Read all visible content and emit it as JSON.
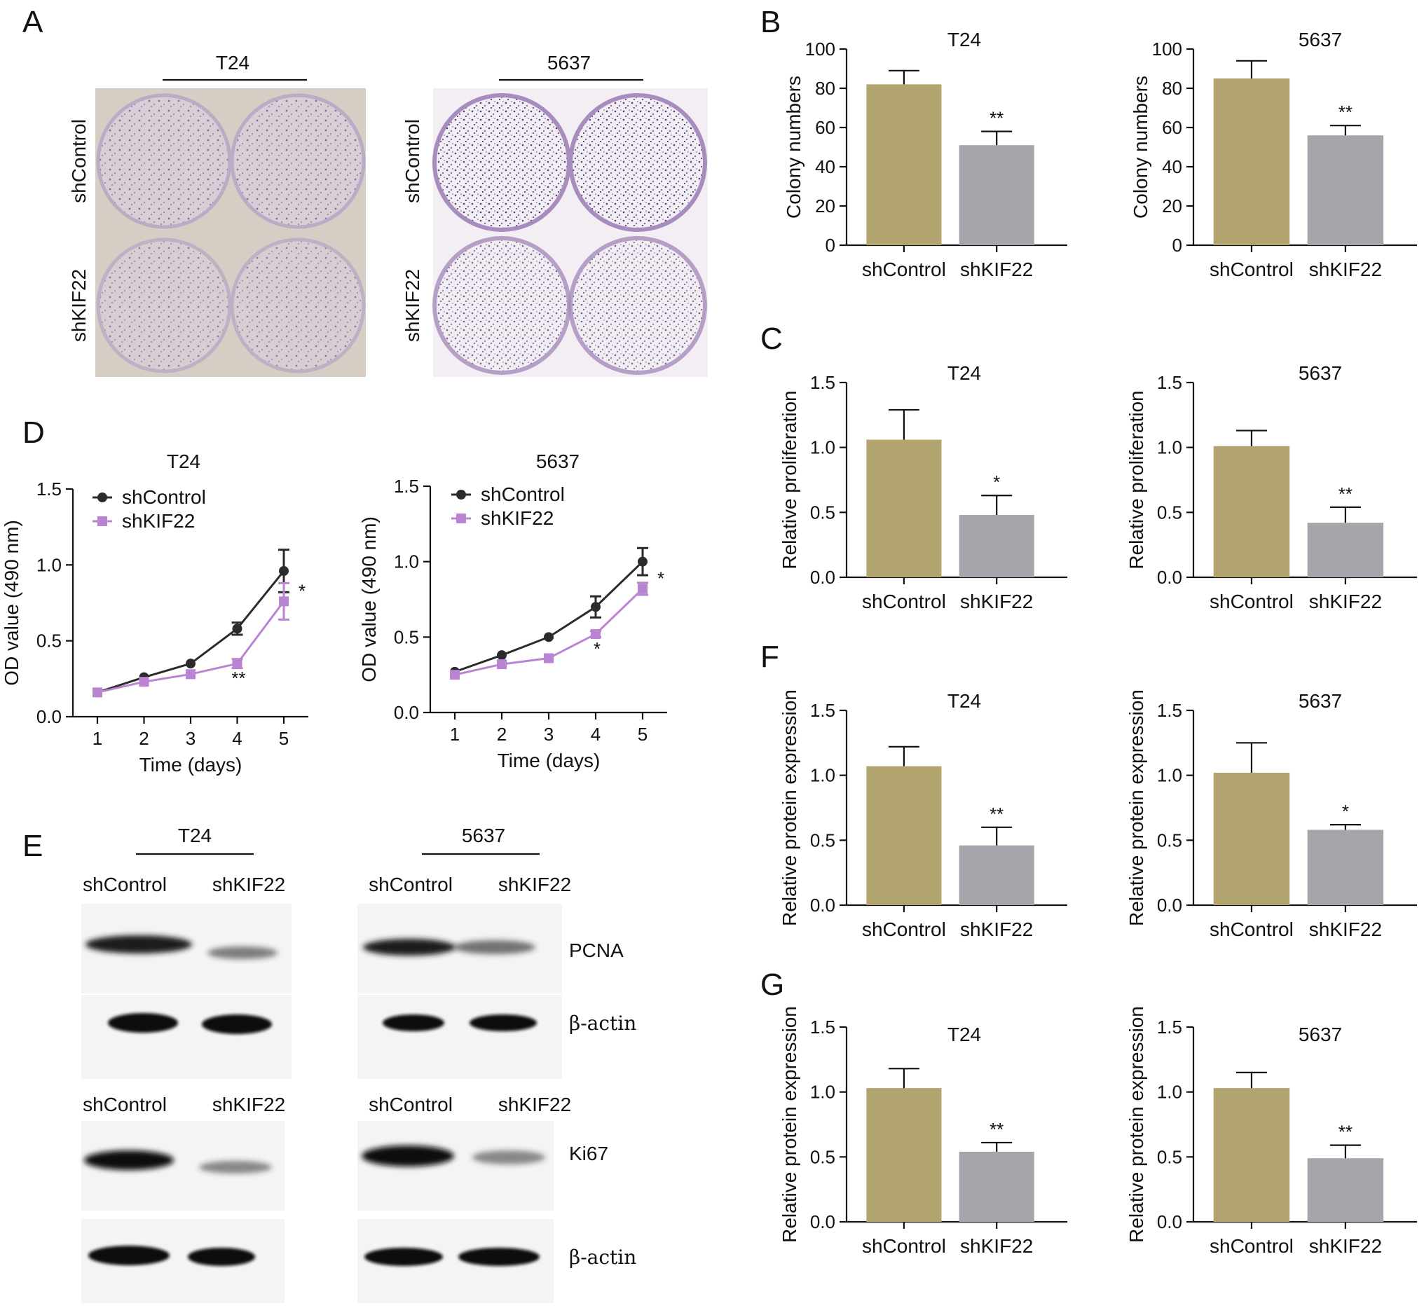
{
  "figure": {
    "panel_letters": [
      "A",
      "B",
      "C",
      "D",
      "E",
      "F",
      "G"
    ],
    "colors": {
      "shControl_bar": "#b2a46e",
      "shKIF22_bar": "#a5a5ab",
      "shControl_line": "#2b2b2b",
      "shKIF22_line": "#b985d2",
      "plate_t24": "#d8d0c8",
      "plate_5637": "#f2eff5",
      "stain_t24": "#9b86a6",
      "stain_5637": "#7b5b8f"
    }
  },
  "panel_a": {
    "plates": [
      {
        "cell_line": "T24",
        "row_labels": [
          "shControl",
          "shKIF22"
        ]
      },
      {
        "cell_line": "5637",
        "row_labels": [
          "shControl",
          "shKIF22"
        ]
      }
    ]
  },
  "panel_e": {
    "blots": [
      {
        "cell_line": "T24",
        "lanes": [
          "shControl",
          "shKIF22"
        ],
        "band_intensity": [
          1.0,
          0.45
        ],
        "loading_intensity": [
          1.0,
          1.0
        ]
      },
      {
        "cell_line": "5637",
        "lanes": [
          "shControl",
          "shKIF22"
        ],
        "band_intensity": [
          1.0,
          0.55
        ],
        "loading_intensity": [
          1.0,
          1.0
        ]
      },
      {
        "cell_line": "T24",
        "lanes": [
          "shControl",
          "shKIF22"
        ],
        "band_intensity": [
          1.0,
          0.5
        ],
        "loading_intensity": [
          1.0,
          1.0
        ]
      },
      {
        "cell_line": "5637",
        "lanes": [
          "shControl",
          "shKIF22"
        ],
        "band_intensity": [
          1.0,
          0.5
        ],
        "loading_intensity": [
          1.0,
          1.0
        ]
      }
    ],
    "row_labels": [
      "PCNA",
      "β-actin",
      "Ki67",
      "β-actin"
    ]
  },
  "chart_data": [
    {
      "id": "B1",
      "panel": "B",
      "type": "bar",
      "title": "T24",
      "categories": [
        "shControl",
        "shKIF22"
      ],
      "values": [
        82,
        51
      ],
      "errors": [
        7,
        7
      ],
      "significance": [
        "",
        "**"
      ],
      "ylabel": "Colony numbers",
      "ylim": [
        0,
        100
      ],
      "yticks": [
        "0",
        "20",
        "40",
        "60",
        "80",
        "100"
      ]
    },
    {
      "id": "B2",
      "panel": "B",
      "type": "bar",
      "title": "5637",
      "categories": [
        "shControl",
        "shKIF22"
      ],
      "values": [
        85,
        56
      ],
      "errors": [
        9,
        5
      ],
      "significance": [
        "",
        "**"
      ],
      "ylabel": "Colony numbers",
      "ylim": [
        0,
        100
      ],
      "yticks": [
        "0",
        "20",
        "40",
        "60",
        "80",
        "100"
      ]
    },
    {
      "id": "C1",
      "panel": "C",
      "type": "bar",
      "title": "T24",
      "categories": [
        "shControl",
        "shKIF22"
      ],
      "values": [
        1.06,
        0.48
      ],
      "errors": [
        0.23,
        0.15
      ],
      "significance": [
        "",
        "*"
      ],
      "ylabel": "Relative proliferation",
      "ylim": [
        0,
        1.5
      ],
      "yticks": [
        "0.0",
        "0.5",
        "1.0",
        "1.5"
      ]
    },
    {
      "id": "C2",
      "panel": "C",
      "type": "bar",
      "title": "5637",
      "categories": [
        "shControl",
        "shKIF22"
      ],
      "values": [
        1.01,
        0.42
      ],
      "errors": [
        0.12,
        0.12
      ],
      "significance": [
        "",
        "**"
      ],
      "ylabel": "Relative proliferation",
      "ylim": [
        0,
        1.5
      ],
      "yticks": [
        "0.0",
        "0.5",
        "1.0",
        "1.5"
      ]
    },
    {
      "id": "F1",
      "panel": "F",
      "type": "bar",
      "title": "T24",
      "categories": [
        "shControl",
        "shKIF22"
      ],
      "values": [
        1.07,
        0.46
      ],
      "errors": [
        0.15,
        0.14
      ],
      "significance": [
        "",
        "**"
      ],
      "ylabel": "Relative protein expression",
      "ylim": [
        0,
        1.5
      ],
      "yticks": [
        "0.0",
        "0.5",
        "1.0",
        "1.5"
      ]
    },
    {
      "id": "F2",
      "panel": "F",
      "type": "bar",
      "title": "5637",
      "categories": [
        "shControl",
        "shKIF22"
      ],
      "values": [
        1.02,
        0.58
      ],
      "errors": [
        0.23,
        0.04
      ],
      "significance": [
        "",
        "*"
      ],
      "ylabel": "Relative protein expression",
      "ylim": [
        0,
        1.5
      ],
      "yticks": [
        "0.0",
        "0.5",
        "1.0",
        "1.5"
      ]
    },
    {
      "id": "G1",
      "panel": "G",
      "type": "bar",
      "title": "T24",
      "categories": [
        "shControl",
        "shKIF22"
      ],
      "values": [
        1.03,
        0.54
      ],
      "errors": [
        0.15,
        0.07
      ],
      "significance": [
        "",
        "**"
      ],
      "ylabel": "Relative protein expression",
      "ylim": [
        0,
        1.5
      ],
      "yticks": [
        "0.0",
        "0.5",
        "1.0",
        "1.5"
      ]
    },
    {
      "id": "G2",
      "panel": "G",
      "type": "bar",
      "title": "5637",
      "categories": [
        "shControl",
        "shKIF22"
      ],
      "values": [
        1.03,
        0.49
      ],
      "errors": [
        0.12,
        0.1
      ],
      "significance": [
        "",
        "**"
      ],
      "ylabel": "Relative protein expression",
      "ylim": [
        0,
        1.5
      ],
      "yticks": [
        "0.0",
        "0.5",
        "1.0",
        "1.5"
      ]
    },
    {
      "id": "D1",
      "panel": "D",
      "type": "line",
      "title": "T24",
      "x": [
        1,
        2,
        3,
        4,
        5
      ],
      "xticks": [
        "1",
        "2",
        "3",
        "4",
        "5"
      ],
      "series": [
        {
          "name": "shControl",
          "values": [
            0.16,
            0.26,
            0.35,
            0.58,
            0.96
          ],
          "errors": [
            0.01,
            0.01,
            0.01,
            0.04,
            0.14
          ],
          "marker": "circle",
          "sig": [
            "",
            "",
            "",
            "",
            ""
          ]
        },
        {
          "name": "shKIF22",
          "values": [
            0.16,
            0.23,
            0.28,
            0.35,
            0.76
          ],
          "errors": [
            0.01,
            0.01,
            0.01,
            0.03,
            0.12
          ],
          "marker": "square",
          "sig": [
            "",
            "",
            "",
            "**",
            "*"
          ]
        }
      ],
      "xlabel": "Time (days)",
      "ylabel": "OD value (490 nm)",
      "ylim": [
        0,
        1.5
      ],
      "yticks": [
        "0.0",
        "0.5",
        "1.0",
        "1.5"
      ],
      "legend": "top-left"
    },
    {
      "id": "D2",
      "panel": "D",
      "type": "line",
      "title": "5637",
      "x": [
        1,
        2,
        3,
        4,
        5
      ],
      "xticks": [
        "1",
        "2",
        "3",
        "4",
        "5"
      ],
      "series": [
        {
          "name": "shControl",
          "values": [
            0.27,
            0.38,
            0.5,
            0.7,
            1.0
          ],
          "errors": [
            0.01,
            0.01,
            0.01,
            0.07,
            0.09
          ],
          "marker": "circle",
          "sig": [
            "",
            "",
            "",
            "",
            ""
          ]
        },
        {
          "name": "shKIF22",
          "values": [
            0.25,
            0.32,
            0.36,
            0.52,
            0.82
          ],
          "errors": [
            0.01,
            0.01,
            0.01,
            0.02,
            0.04
          ],
          "marker": "square",
          "sig": [
            "",
            "",
            "",
            "*",
            "*"
          ]
        }
      ],
      "xlabel": "Time (days)",
      "ylabel": "OD value (490 nm)",
      "ylim": [
        0,
        1.5
      ],
      "yticks": [
        "0.0",
        "0.5",
        "1.0",
        "1.5"
      ],
      "legend": "top-left"
    }
  ]
}
